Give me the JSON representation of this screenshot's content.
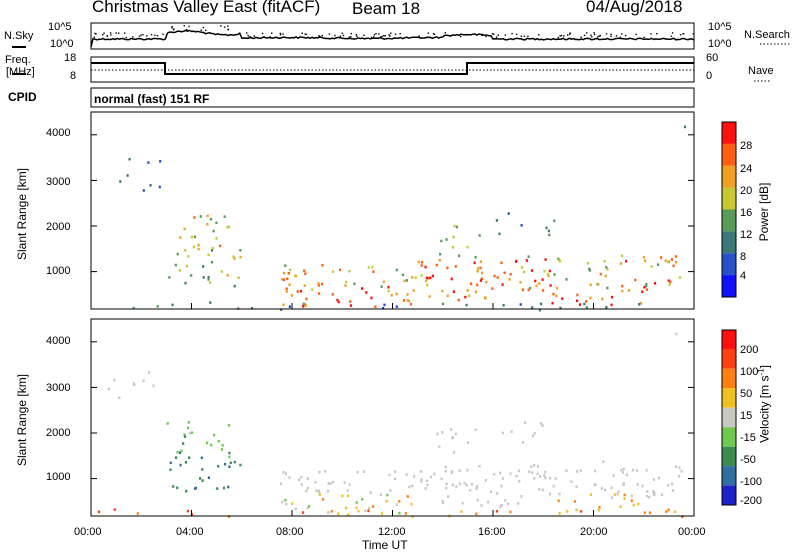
{
  "header": {
    "title": "Christmas Valley East (fitACF)",
    "beam": "Beam 18",
    "date": "04/Aug/2018"
  },
  "top_panel": {
    "left_label": "N.Sky",
    "left_ticks": [
      "10^5",
      "10^0"
    ],
    "right_label": "N.Search",
    "right_ticks": [
      "10^5",
      "10^0"
    ]
  },
  "freq_panel": {
    "left_label_1": "Freq.",
    "left_label_2": "[MHz]",
    "left_ticks": [
      "18",
      "8"
    ],
    "right_label": "Nave",
    "right_ticks": [
      "60",
      "0"
    ],
    "cpid_label": "CPID",
    "cpid_text": "normal (fast) 151 RF"
  },
  "chart_data": [
    {
      "type": "heatmap",
      "name": "power",
      "ylabel": "Slant Range [km]",
      "yticks": [
        "1000",
        "2000",
        "3000",
        "4000"
      ],
      "ylim": [
        180,
        4500
      ],
      "xlim": [
        0,
        24
      ],
      "colorbar_label": "Power [dB]",
      "colorbar_ticks": [
        "4",
        "8",
        "12",
        "16",
        "20",
        "24",
        "28"
      ],
      "colorbar_colors": [
        "#1010ff",
        "#2850c8",
        "#3c7878",
        "#5a9a5a",
        "#c8c832",
        "#f0a020",
        "#ff6010",
        "#ff1010"
      ]
    },
    {
      "type": "heatmap",
      "name": "velocity",
      "ylabel": "Slant Range [km]",
      "yticks": [
        "1000",
        "2000",
        "3000",
        "4000"
      ],
      "ylim": [
        180,
        4500
      ],
      "xlim": [
        0,
        24
      ],
      "colorbar_label": "Velocity [m s",
      "colorbar_label_sup": "-1",
      "colorbar_label_end": "]",
      "colorbar_ticks": [
        "200",
        "100",
        "50",
        "15",
        "-15",
        "-50",
        "-100",
        "-200"
      ],
      "colorbar_colors": [
        "#2020c8",
        "#3070a0",
        "#3c8c50",
        "#70c850",
        "#c8c8c0",
        "#f0c020",
        "#ff8010",
        "#ff4010",
        "#ff1010"
      ]
    }
  ],
  "xaxis": {
    "label": "Time UT",
    "ticks": [
      "00:00",
      "04:00",
      "08:00",
      "12:00",
      "16:00",
      "20:00",
      "00:00"
    ]
  }
}
